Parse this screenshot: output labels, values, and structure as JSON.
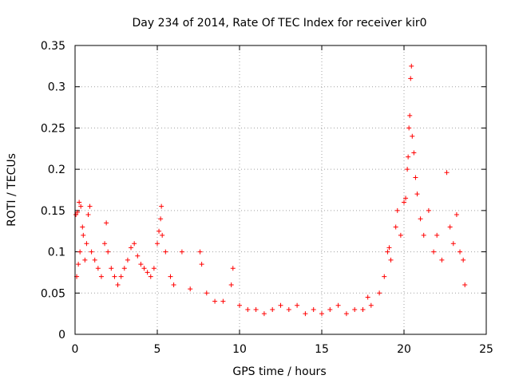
{
  "chart_data": {
    "type": "scatter",
    "title": "Day 234 of 2014, Rate Of TEC Index for receiver kir0",
    "xlabel": "GPS time / hours",
    "ylabel": "ROTI / TECUs",
    "xlim": [
      0,
      25
    ],
    "ylim": [
      0,
      0.35
    ],
    "x_ticks": [
      0,
      5,
      10,
      15,
      20,
      25
    ],
    "x_tick_labels": [
      "0",
      "5",
      "10",
      "15",
      "20",
      "25"
    ],
    "y_ticks": [
      0,
      0.05,
      0.1,
      0.15,
      0.2,
      0.25,
      0.3,
      0.35
    ],
    "y_tick_labels": [
      "0",
      "0.05",
      "0.1",
      "0.15",
      "0.2",
      "0.25",
      "0.3",
      "0.35"
    ],
    "grid": true,
    "marker": "+",
    "marker_color": "#ff0000",
    "series": [
      {
        "name": "ROTI",
        "points": [
          [
            0.05,
            0.145
          ],
          [
            0.15,
            0.148
          ],
          [
            0.25,
            0.16
          ],
          [
            0.35,
            0.155
          ],
          [
            0.45,
            0.13
          ],
          [
            0.3,
            0.1
          ],
          [
            0.2,
            0.085
          ],
          [
            0.1,
            0.07
          ],
          [
            0.5,
            0.12
          ],
          [
            0.6,
            0.09
          ],
          [
            0.7,
            0.11
          ],
          [
            0.8,
            0.145
          ],
          [
            0.9,
            0.155
          ],
          [
            1.0,
            0.1
          ],
          [
            1.2,
            0.09
          ],
          [
            1.4,
            0.08
          ],
          [
            1.6,
            0.07
          ],
          [
            1.8,
            0.11
          ],
          [
            1.9,
            0.135
          ],
          [
            2.0,
            0.1
          ],
          [
            2.2,
            0.08
          ],
          [
            2.4,
            0.07
          ],
          [
            2.6,
            0.06
          ],
          [
            2.8,
            0.07
          ],
          [
            3.0,
            0.08
          ],
          [
            3.2,
            0.09
          ],
          [
            3.4,
            0.105
          ],
          [
            3.6,
            0.11
          ],
          [
            3.8,
            0.095
          ],
          [
            4.0,
            0.085
          ],
          [
            4.2,
            0.08
          ],
          [
            4.4,
            0.075
          ],
          [
            4.6,
            0.07
          ],
          [
            4.8,
            0.08
          ],
          [
            5.0,
            0.11
          ],
          [
            5.1,
            0.125
          ],
          [
            5.2,
            0.14
          ],
          [
            5.25,
            0.155
          ],
          [
            5.3,
            0.12
          ],
          [
            5.5,
            0.1
          ],
          [
            5.8,
            0.07
          ],
          [
            6.0,
            0.06
          ],
          [
            6.5,
            0.1
          ],
          [
            7.0,
            0.055
          ],
          [
            7.6,
            0.1
          ],
          [
            7.7,
            0.085
          ],
          [
            8.0,
            0.05
          ],
          [
            8.5,
            0.04
          ],
          [
            9.0,
            0.04
          ],
          [
            9.5,
            0.06
          ],
          [
            9.6,
            0.08
          ],
          [
            10.0,
            0.035
          ],
          [
            10.5,
            0.03
          ],
          [
            11.0,
            0.03
          ],
          [
            11.5,
            0.025
          ],
          [
            12.0,
            0.03
          ],
          [
            12.5,
            0.035
          ],
          [
            13.0,
            0.03
          ],
          [
            13.5,
            0.035
          ],
          [
            14.0,
            0.025
          ],
          [
            14.5,
            0.03
          ],
          [
            15.0,
            0.025
          ],
          [
            15.5,
            0.03
          ],
          [
            16.0,
            0.035
          ],
          [
            16.5,
            0.025
          ],
          [
            17.0,
            0.03
          ],
          [
            17.5,
            0.03
          ],
          [
            17.8,
            0.045
          ],
          [
            18.0,
            0.035
          ],
          [
            18.5,
            0.05
          ],
          [
            18.8,
            0.07
          ],
          [
            19.0,
            0.1
          ],
          [
            19.1,
            0.105
          ],
          [
            19.2,
            0.09
          ],
          [
            19.5,
            0.13
          ],
          [
            19.6,
            0.15
          ],
          [
            19.8,
            0.12
          ],
          [
            20.0,
            0.16
          ],
          [
            20.1,
            0.165
          ],
          [
            20.2,
            0.2
          ],
          [
            20.25,
            0.215
          ],
          [
            20.3,
            0.25
          ],
          [
            20.35,
            0.265
          ],
          [
            20.4,
            0.31
          ],
          [
            20.45,
            0.325
          ],
          [
            20.5,
            0.24
          ],
          [
            20.6,
            0.22
          ],
          [
            20.7,
            0.19
          ],
          [
            20.8,
            0.17
          ],
          [
            21.0,
            0.14
          ],
          [
            21.2,
            0.12
          ],
          [
            21.5,
            0.15
          ],
          [
            21.8,
            0.1
          ],
          [
            22.0,
            0.12
          ],
          [
            22.3,
            0.09
          ],
          [
            22.6,
            0.196
          ],
          [
            22.8,
            0.13
          ],
          [
            23.0,
            0.11
          ],
          [
            23.2,
            0.145
          ],
          [
            23.4,
            0.1
          ],
          [
            23.6,
            0.09
          ],
          [
            23.7,
            0.06
          ]
        ]
      }
    ]
  }
}
